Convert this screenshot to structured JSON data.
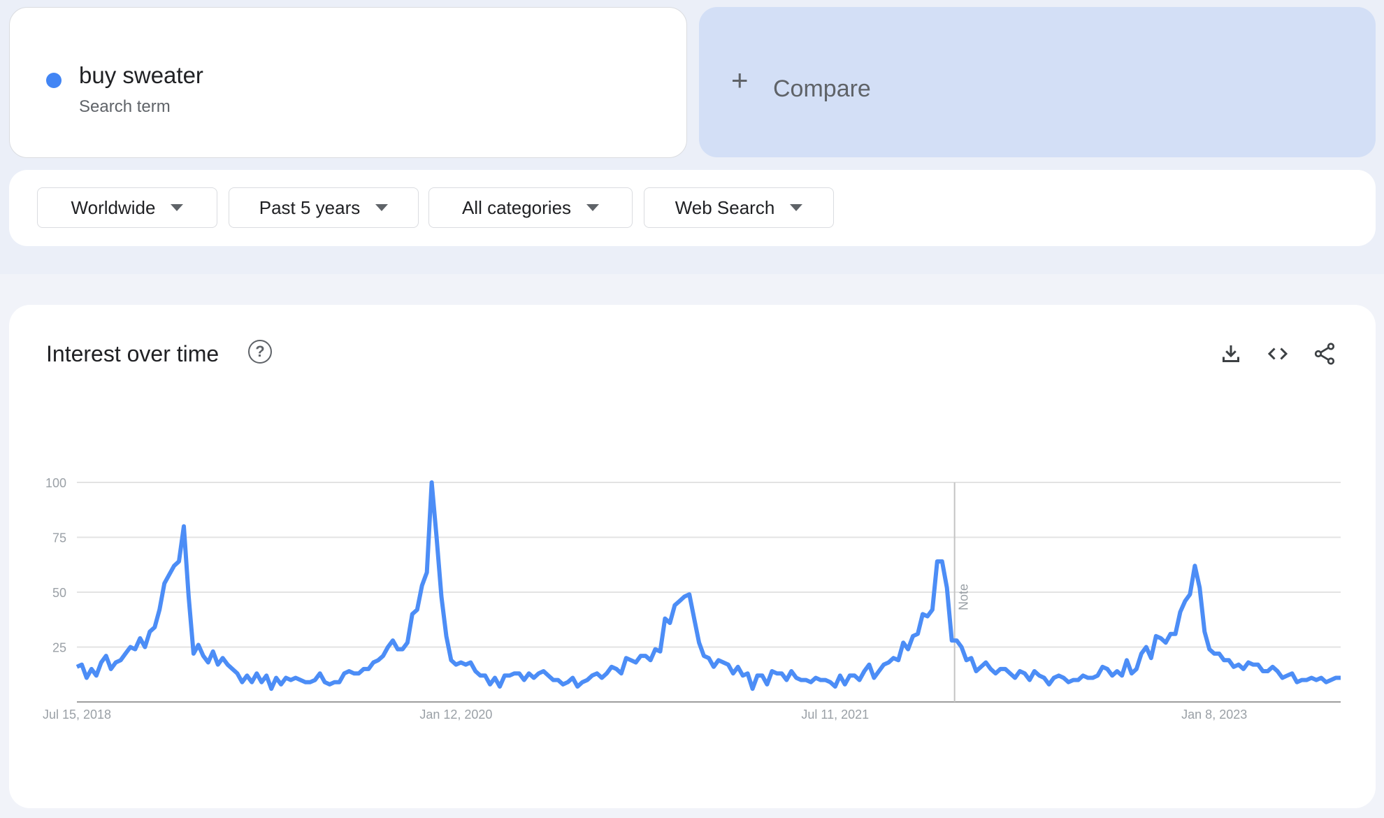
{
  "search_term": {
    "name": "buy sweater",
    "type_label": "Search term",
    "color": "#4285f4"
  },
  "compare": {
    "icon": "plus-icon",
    "label": "Compare"
  },
  "filters": [
    {
      "label": "Worldwide"
    },
    {
      "label": "Past 5 years"
    },
    {
      "label": "All categories"
    },
    {
      "label": "Web Search"
    }
  ],
  "interest_card": {
    "title": "Interest over time",
    "help_icon": "help-circle-icon",
    "tools": [
      "download-icon",
      "embed-code-icon",
      "share-icon"
    ]
  },
  "chart_data": {
    "type": "line",
    "title": "",
    "xlabel": "",
    "ylabel": "",
    "ylim": [
      0,
      100
    ],
    "yticks": [
      100,
      75,
      50,
      25
    ],
    "grid": true,
    "frequency": "weekly",
    "start_date": "Jul 15, 2018",
    "xtick_labels": [
      "Jul 15, 2018",
      "Jan 12, 2020",
      "Jul 11, 2021",
      "Jan 8, 2023"
    ],
    "note_label": "Note",
    "line_color": "#4c8df6",
    "series": [
      {
        "name": "buy sweater",
        "values": [
          16,
          17,
          11,
          15,
          12,
          18,
          21,
          15,
          18,
          19,
          22,
          25,
          24,
          29,
          25,
          32,
          34,
          42,
          54,
          58,
          62,
          64,
          80,
          48,
          22,
          26,
          21,
          18,
          23,
          17,
          20,
          17,
          15,
          13,
          9,
          12,
          9,
          13,
          9,
          12,
          6,
          11,
          8,
          11,
          10,
          11,
          10,
          9,
          9,
          10,
          13,
          9,
          8,
          9,
          9,
          13,
          14,
          13,
          13,
          15,
          15,
          18,
          19,
          21,
          25,
          28,
          24,
          24,
          27,
          40,
          42,
          53,
          59,
          100,
          75,
          48,
          30,
          19,
          17,
          18,
          17,
          18,
          14,
          12,
          12,
          8,
          11,
          7,
          12,
          12,
          13,
          13,
          10,
          13,
          11,
          13,
          14,
          12,
          10,
          10,
          8,
          9,
          11,
          7,
          9,
          10,
          12,
          13,
          11,
          13,
          16,
          15,
          13,
          20,
          19,
          18,
          21,
          21,
          19,
          24,
          23,
          38,
          36,
          44,
          46,
          48,
          49,
          38,
          27,
          21,
          20,
          16,
          19,
          18,
          17,
          13,
          16,
          12,
          13,
          6,
          12,
          12,
          8,
          14,
          13,
          13,
          10,
          14,
          11,
          10,
          10,
          9,
          11,
          10,
          10,
          9,
          7,
          12,
          8,
          12,
          12,
          10,
          14,
          17,
          11,
          14,
          17,
          18,
          20,
          19,
          27,
          24,
          30,
          31,
          40,
          39,
          42,
          64,
          64,
          52,
          28,
          28,
          25,
          19,
          20,
          14,
          16,
          18,
          15,
          13,
          15,
          15,
          13,
          11,
          14,
          13,
          10,
          14,
          12,
          11,
          8,
          11,
          12,
          11,
          9,
          10,
          10,
          12,
          11,
          11,
          12,
          16,
          15,
          12,
          14,
          12,
          19,
          13,
          15,
          22,
          25,
          20,
          30,
          29,
          27,
          31,
          31,
          41,
          46,
          49,
          62,
          52,
          32,
          24,
          22,
          22,
          19,
          19,
          16,
          17,
          15,
          18,
          17,
          17,
          14,
          14,
          16,
          14,
          11,
          12,
          13,
          9,
          10,
          10,
          11,
          10,
          11,
          9,
          10,
          11,
          11
        ]
      }
    ]
  }
}
